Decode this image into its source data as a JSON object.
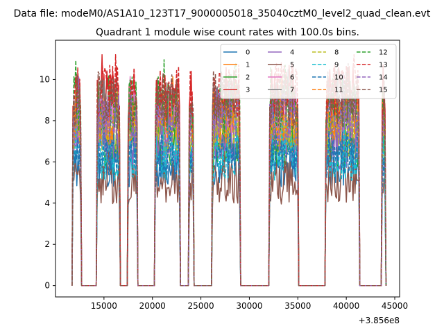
{
  "chart_data": {
    "type": "line",
    "suptitle": "Data file: modeM0/AS1A10_123T17_9000005018_35040cztM0_level2_quad_clean.evt",
    "title": "Quadrant 1 module wise count rates with 100.0s bins.",
    "xlabel": "",
    "ylabel": "",
    "x_offset_label": "+3.856e8",
    "xlim": [
      10000,
      45500
    ],
    "ylim": [
      -0.55,
      11.9
    ],
    "x_ticks": [
      15000,
      20000,
      25000,
      30000,
      35000,
      40000,
      45000
    ],
    "x_tick_labels": [
      "15000",
      "20000",
      "25000",
      "30000",
      "35000",
      "40000",
      "45000"
    ],
    "y_ticks": [
      0,
      2,
      4,
      6,
      8,
      10
    ],
    "y_tick_labels": [
      "0",
      "2",
      "4",
      "6",
      "8",
      "10"
    ],
    "legend": {
      "placement": "top-right",
      "columns": 4,
      "entries": [
        {
          "label": "0",
          "color": "#1f77b4",
          "style": "solid"
        },
        {
          "label": "1",
          "color": "#ff7f0e",
          "style": "solid"
        },
        {
          "label": "2",
          "color": "#2ca02c",
          "style": "solid"
        },
        {
          "label": "3",
          "color": "#d62728",
          "style": "solid"
        },
        {
          "label": "4",
          "color": "#9467bd",
          "style": "solid"
        },
        {
          "label": "5",
          "color": "#8c564b",
          "style": "solid"
        },
        {
          "label": "6",
          "color": "#e377c2",
          "style": "solid"
        },
        {
          "label": "7",
          "color": "#7f7f7f",
          "style": "solid"
        },
        {
          "label": "8",
          "color": "#bcbd22",
          "style": "dashed"
        },
        {
          "label": "9",
          "color": "#17becf",
          "style": "dashed"
        },
        {
          "label": "10",
          "color": "#1f77b4",
          "style": "dashed"
        },
        {
          "label": "11",
          "color": "#ff7f0e",
          "style": "dashed"
        },
        {
          "label": "12",
          "color": "#2ca02c",
          "style": "dashed"
        },
        {
          "label": "13",
          "color": "#d62728",
          "style": "dashed"
        },
        {
          "label": "14",
          "color": "#9467bd",
          "style": "dashed"
        },
        {
          "label": "15",
          "color": "#8c564b",
          "style": "dashed"
        }
      ]
    },
    "active_intervals": [
      [
        11800,
        12600
      ],
      [
        14300,
        16600
      ],
      [
        17500,
        18400
      ],
      [
        20300,
        22800
      ],
      [
        23800,
        24200
      ],
      [
        26200,
        29000
      ],
      [
        32100,
        35000
      ],
      [
        37900,
        41300
      ],
      [
        43700,
        44000
      ]
    ],
    "series_levels": [
      5.9,
      7.8,
      6.9,
      9.3,
      6.8,
      5.0,
      8.4,
      8.6,
      7.5,
      6.2,
      6.4,
      8.2,
      8.8,
      9.4,
      8.0,
      9.0
    ],
    "max_level": 10.6,
    "bin_width_s": 100
  }
}
